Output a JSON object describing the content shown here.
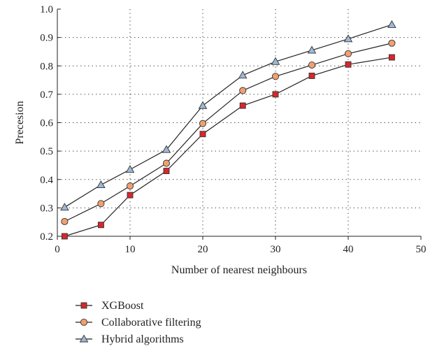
{
  "chart_data": {
    "type": "line",
    "title": "",
    "xlabel": "Number of nearest neighbours",
    "ylabel": "Precesion",
    "xlim": [
      0,
      50
    ],
    "ylim": [
      0.2,
      1.0
    ],
    "x_ticks": [
      0,
      10,
      20,
      30,
      40,
      50
    ],
    "y_ticks": [
      0.2,
      0.3,
      0.4,
      0.5,
      0.6,
      0.7,
      0.8,
      0.9,
      1.0
    ],
    "x_tick_labels": [
      "0",
      "10",
      "20",
      "30",
      "40",
      "50"
    ],
    "y_tick_labels": [
      "0.2",
      "0.3",
      "0.4",
      "0.5",
      "0.6",
      "0.7",
      "0.8",
      "0.9",
      "1.0"
    ],
    "grid": true,
    "legend_position": "bottom-left, below plot",
    "series": [
      {
        "name": "XGBoost",
        "marker": "square",
        "color": "#d9262a",
        "x": [
          1,
          6,
          10,
          15,
          20,
          25.5,
          30,
          35,
          40,
          46
        ],
        "y": [
          0.2,
          0.24,
          0.345,
          0.43,
          0.56,
          0.66,
          0.7,
          0.765,
          0.805,
          0.83
        ]
      },
      {
        "name": "Collaborative filtering",
        "marker": "circle",
        "color": "#f0a070",
        "x": [
          1,
          6,
          10,
          15,
          20,
          25.5,
          30,
          35,
          40,
          46
        ],
        "y": [
          0.252,
          0.315,
          0.377,
          0.457,
          0.597,
          0.713,
          0.763,
          0.803,
          0.843,
          0.88
        ]
      },
      {
        "name": "Hybrid algorithms",
        "marker": "triangle",
        "color": "#9fb8d8",
        "x": [
          1,
          6,
          10,
          15,
          20,
          25.5,
          30,
          35,
          40,
          46
        ],
        "y": [
          0.302,
          0.381,
          0.435,
          0.505,
          0.66,
          0.767,
          0.815,
          0.855,
          0.895,
          0.945
        ]
      }
    ]
  }
}
